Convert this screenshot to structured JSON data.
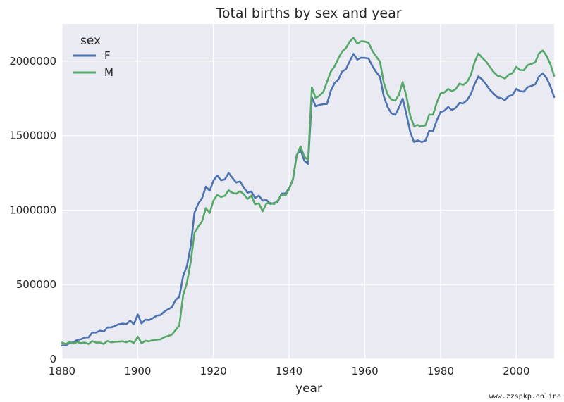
{
  "chart_data": {
    "type": "line",
    "title": "Total births by sex and year",
    "xlabel": "year",
    "ylabel": "",
    "xlim": [
      1880,
      2010
    ],
    "ylim": [
      0,
      2250000
    ],
    "xticks": [
      1880,
      1900,
      1920,
      1940,
      1960,
      1980,
      2000
    ],
    "yticks": [
      0,
      500000,
      1000000,
      1500000,
      2000000
    ],
    "grid": true,
    "legend_title": "sex",
    "legend_position": "top-left",
    "x": [
      1880,
      1881,
      1882,
      1883,
      1884,
      1885,
      1886,
      1887,
      1888,
      1889,
      1890,
      1891,
      1892,
      1893,
      1894,
      1895,
      1896,
      1897,
      1898,
      1899,
      1900,
      1901,
      1902,
      1903,
      1904,
      1905,
      1906,
      1907,
      1908,
      1909,
      1910,
      1911,
      1912,
      1913,
      1914,
      1915,
      1916,
      1917,
      1918,
      1919,
      1920,
      1921,
      1922,
      1923,
      1924,
      1925,
      1926,
      1927,
      1928,
      1929,
      1930,
      1931,
      1932,
      1933,
      1934,
      1935,
      1936,
      1937,
      1938,
      1939,
      1940,
      1941,
      1942,
      1943,
      1944,
      1945,
      1946,
      1947,
      1948,
      1949,
      1950,
      1951,
      1952,
      1953,
      1954,
      1955,
      1956,
      1957,
      1958,
      1959,
      1960,
      1961,
      1962,
      1963,
      1964,
      1965,
      1966,
      1967,
      1968,
      1969,
      1970,
      1971,
      1972,
      1973,
      1974,
      1975,
      1976,
      1977,
      1978,
      1979,
      1980,
      1981,
      1982,
      1983,
      1984,
      1985,
      1986,
      1987,
      1988,
      1989,
      1990,
      1991,
      1992,
      1993,
      1994,
      1995,
      1996,
      1997,
      1998,
      1999,
      2000,
      2001,
      2002,
      2003,
      2004,
      2005,
      2006,
      2007,
      2008,
      2009,
      2010
    ],
    "series": [
      {
        "name": "F",
        "color": "#4c72b0",
        "values": [
          90993,
          91954,
          107850,
          112321,
          129022,
          133055,
          144535,
          145982,
          178628,
          178366,
          190377,
          185482,
          212346,
          212906,
          222922,
          233630,
          237920,
          234202,
          258770,
          233023,
          299822,
          239348,
          264079,
          261976,
          275375,
          291641,
          295301,
          318558,
          334277,
          347191,
          396416,
          418180,
          557939,
          624317,
          761376,
          983824,
          1044249,
          1081194,
          1157585,
          1130149,
          1198214,
          1232845,
          1200796,
          1206239,
          1248821,
          1217217,
          1185078,
          1192207,
          1152836,
          1116284,
          1125521,
          1081055,
          1097100,
          1063040,
          1068916,
          1041791,
          1047590,
          1056370,
          1110670,
          1112450,
          1148100,
          1203450,
          1370880,
          1405490,
          1332630,
          1309970,
          1757490,
          1696740,
          1705930,
          1711480,
          1713260,
          1800370,
          1852380,
          1877380,
          1930080,
          1946290,
          2001120,
          2048590,
          2010640,
          2023030,
          2022122,
          2017316,
          1966529,
          1927239,
          1894346,
          1764733,
          1691897,
          1650800,
          1640154,
          1688165,
          1749005,
          1641000,
          1523590,
          1457290,
          1467690,
          1457430,
          1465340,
          1532710,
          1531240,
          1603570,
          1658360,
          1666970,
          1692850,
          1672560,
          1686470,
          1719440,
          1716960,
          1738170,
          1778640,
          1845830,
          1898040,
          1876700,
          1843810,
          1807890,
          1783230,
          1758030,
          1751380,
          1738550,
          1765180,
          1772330,
          1814760,
          1798200,
          1795570,
          1825580,
          1833880,
          1844270,
          1896460,
          1919300,
          1886110,
          1832330,
          1759140
        ]
      },
      {
        "name": "M",
        "color": "#55a868",
        "values": [
          110491,
          100746,
          113687,
          104630,
          114445,
          107801,
          110785,
          101415,
          120851,
          110584,
          111025,
          101196,
          122037,
          112317,
          115772,
          117398,
          119570,
          112758,
          122693,
          106212,
          150554,
          106480,
          122660,
          119231,
          127795,
          130199,
          132381,
          146823,
          154345,
          163984,
          194198,
          225961,
          429908,
          512482,
          654746,
          848647,
          890142,
          925655,
          1013720,
          980150,
          1064468,
          1101374,
          1088380,
          1096227,
          1132671,
          1115798,
          1110440,
          1126259,
          1107113,
          1075601,
          1097207,
          1039321,
          1044983,
          992720,
          1044249,
          1048258,
          1040211,
          1063500,
          1103110,
          1096960,
          1143390,
          1207150,
          1366510,
          1427760,
          1359330,
          1335690,
          1823700,
          1752060,
          1768580,
          1792240,
          1860520,
          1929950,
          1964850,
          2018870,
          2065580,
          2087420,
          2131680,
          2156810,
          2118710,
          2133590,
          2132430,
          2122770,
          2068400,
          2031800,
          1997040,
          1855010,
          1777350,
          1742240,
          1734880,
          1775060,
          1859910,
          1762320,
          1630790,
          1565080,
          1571030,
          1561570,
          1569020,
          1640930,
          1641310,
          1721910,
          1783460,
          1790530,
          1813620,
          1798240,
          1812780,
          1849530,
          1840850,
          1860110,
          1907780,
          1993980,
          2051600,
          2022040,
          1998180,
          1962360,
          1927420,
          1902600,
          1895340,
          1883430,
          1908930,
          1919320,
          1961880,
          1940380,
          1939640,
          1973460,
          1981600,
          1992860,
          2052380,
          2071840,
          2035080,
          1981000,
          1901070
        ]
      }
    ]
  },
  "watermark": "www.zzspkp.online"
}
